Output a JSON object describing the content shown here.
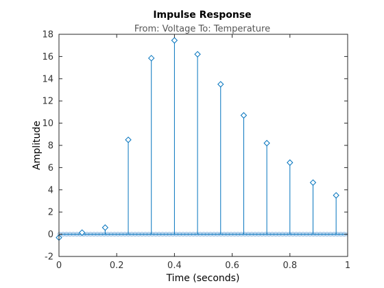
{
  "chart_data": {
    "type": "stem",
    "title": "Impulse Response",
    "subtitle": "From: Voltage  To: Temperature",
    "xlabel": "Time (seconds)",
    "ylabel": "Amplitude",
    "xlim": [
      0,
      1
    ],
    "ylim": [
      -2,
      18
    ],
    "xticks": [
      "0",
      "0.2",
      "0.4",
      "0.6",
      "0.8",
      "1"
    ],
    "yticks": [
      "-2",
      "0",
      "2",
      "4",
      "6",
      "8",
      "10",
      "12",
      "14",
      "16",
      "18"
    ],
    "series": [
      {
        "x": [
          0,
          0.08,
          0.16,
          0.24,
          0.32,
          0.4,
          0.48,
          0.56,
          0.64,
          0.72,
          0.8,
          0.88,
          0.96
        ],
        "y": [
          -0.3,
          0.15,
          0.6,
          8.5,
          15.85,
          17.45,
          16.2,
          13.5,
          10.7,
          8.2,
          6.45,
          4.65,
          3.5
        ]
      }
    ],
    "colors": {
      "stem": "#0072BD",
      "zero_band": "#b8d4ee"
    },
    "grid": false
  }
}
